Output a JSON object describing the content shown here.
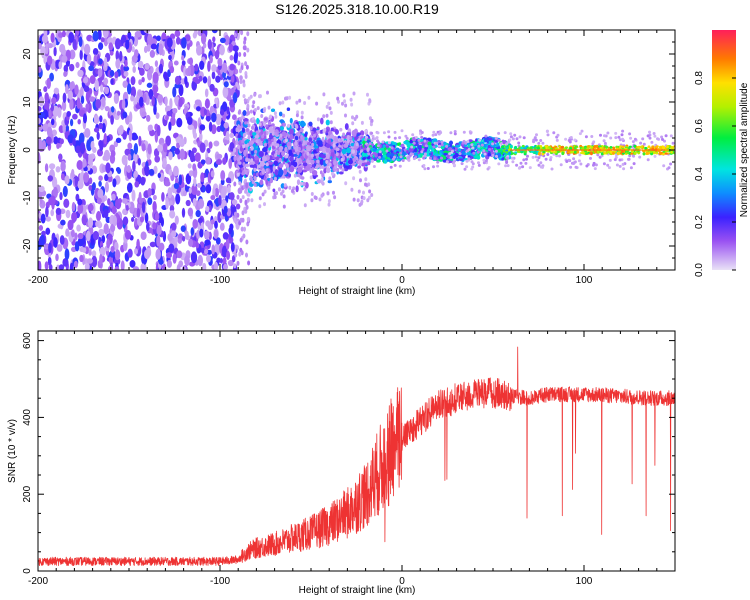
{
  "title": "S126.2025.318.10.00.R19",
  "colors": {
    "snr_line": "#ee3333",
    "background": "#ffffff",
    "axis": "#000000"
  },
  "chart_data": [
    {
      "type": "heatmap",
      "name": "spectrogram",
      "xlabel": "Height of straight line (km)",
      "ylabel": "Frequency (Hz)",
      "xlim": [
        -200,
        150
      ],
      "ylim": [
        -25,
        25
      ],
      "x_ticks": [
        -200,
        -100,
        0,
        100
      ],
      "x_tick_labels": [
        "-200",
        "-100",
        "0",
        "100"
      ],
      "y_ticks": [
        -20,
        -10,
        0,
        10,
        20
      ],
      "y_tick_labels": [
        "-20",
        "-10",
        "0",
        "10",
        "20"
      ],
      "colorbar": {
        "label": "Normalized spectral amplitude",
        "range": [
          0,
          1
        ],
        "ticks": [
          0.0,
          0.2,
          0.4,
          0.6,
          0.8
        ],
        "tick_labels": [
          "0.0",
          "0.2",
          "0.4",
          "0.6",
          "0.8"
        ],
        "colormap": "rainbow (violet low → red high)"
      },
      "regions": [
        {
          "x_range": [
            -200,
            -90
          ],
          "freq_range": [
            -25,
            25
          ],
          "amplitude": [
            0.05,
            0.25
          ],
          "description": "broadband noise"
        },
        {
          "x_range": [
            -90,
            -20
          ],
          "freq_range": [
            -10,
            10
          ],
          "amplitude": [
            0.05,
            0.3
          ],
          "description": "spread signal"
        },
        {
          "x_range": [
            -20,
            60
          ],
          "freq_range": [
            -2,
            2
          ],
          "amplitude": [
            0.2,
            0.5
          ],
          "description": "narrowing carrier"
        },
        {
          "x_range": [
            60,
            150
          ],
          "freq_range": [
            -1,
            1
          ],
          "amplitude": [
            0.7,
            0.9
          ],
          "description": "strong narrow carrier"
        }
      ]
    },
    {
      "type": "line",
      "name": "snr",
      "xlabel": "Height of straight line (km)",
      "ylabel": "SNR (10 * v/v)",
      "xlim": [
        -200,
        150
      ],
      "ylim": [
        0,
        625
      ],
      "x_ticks": [
        -200,
        -100,
        0,
        100
      ],
      "x_tick_labels": [
        "-200",
        "-100",
        "0",
        "100"
      ],
      "y_ticks": [
        0,
        200,
        400,
        600
      ],
      "y_tick_labels": [
        "0",
        "200",
        "400",
        "600"
      ],
      "series": [
        {
          "name": "SNR",
          "x": [
            -200,
            -180,
            -160,
            -140,
            -120,
            -100,
            -90,
            -85,
            -80,
            -70,
            -60,
            -50,
            -40,
            -30,
            -20,
            -15,
            -10,
            -5,
            0,
            5,
            10,
            15,
            20,
            30,
            40,
            50,
            60,
            70,
            80,
            90,
            100,
            110,
            120,
            130,
            140,
            150
          ],
          "y": [
            25,
            25,
            25,
            25,
            25,
            25,
            30,
            50,
            60,
            70,
            85,
            100,
            120,
            150,
            200,
            240,
            280,
            320,
            350,
            370,
            390,
            410,
            430,
            450,
            460,
            465,
            455,
            450,
            460,
            460,
            460,
            458,
            455,
            452,
            450,
            450
          ]
        }
      ]
    }
  ]
}
